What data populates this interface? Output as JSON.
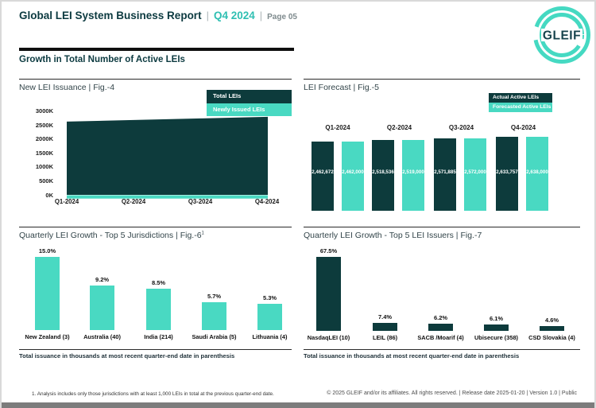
{
  "header": {
    "title": "Global LEI System Business Report",
    "divider": "|",
    "period": "Q4 2024",
    "page_label": "Page 05",
    "logo_text": "GLEIF",
    "section_title": "Growth in Total Number of Active LEIs"
  },
  "colors": {
    "brand_dark": "#0d3b3c",
    "brand_teal": "#49d9c2",
    "accent_teal": "#2fbfb2"
  },
  "chart_data": [
    {
      "id": "fig4",
      "type": "area",
      "title": "New LEI Issuance | Fig.-4",
      "x": [
        "Q1-2024",
        "Q2-2024",
        "Q3-2024",
        "Q4-2024"
      ],
      "y_ticks": [
        "3000K",
        "2500K",
        "2000K",
        "1500K",
        "1000K",
        "500K",
        "0K"
      ],
      "ylim": [
        0,
        3000000
      ],
      "legend_position": "top-right",
      "series": [
        {
          "name": "Total LEIs",
          "color": "#0d3b3c",
          "values": [
            2620000,
            2677000,
            2733000,
            2790000
          ],
          "estimated_from_pixels": true
        },
        {
          "name": "Newly Issued LEIs",
          "color": "#49d9c2",
          "values": [
            40000,
            40000,
            40000,
            40000
          ],
          "estimated_from_pixels": true
        }
      ]
    },
    {
      "id": "fig5",
      "type": "bar",
      "title": "LEI Forecast | Fig.-5",
      "categories": [
        "Q1-2024",
        "Q2-2024",
        "Q3-2024",
        "Q4-2024"
      ],
      "legend_position": "top-right",
      "series": [
        {
          "name": "Actual Active LEIs",
          "color": "#0d3b3c",
          "values": [
            2462672,
            2518536,
            2571885,
            2633757
          ],
          "labels": [
            "2,462,672",
            "2,518,536",
            "2,571,885",
            "2,633,757"
          ]
        },
        {
          "name": "Forecasted Active LEIs",
          "color": "#49d9c2",
          "values": [
            2462000,
            2519000,
            2572000,
            2638000
          ],
          "labels": [
            "2,462,000",
            "2,519,000",
            "2,572,000",
            "2,638,000"
          ]
        }
      ]
    },
    {
      "id": "fig6",
      "type": "bar",
      "title": "Quarterly LEI Growth - Top 5 Jurisdictions | Fig.-6",
      "title_superscript": "1",
      "categories": [
        "New Zealand (3)",
        "Australia (40)",
        "India (214)",
        "Saudi Arabia (5)",
        "Lithuania (4)"
      ],
      "values": [
        15.0,
        9.2,
        8.5,
        5.7,
        5.3
      ],
      "labels": [
        "15.0%",
        "9.2%",
        "8.5%",
        "5.7%",
        "5.3%"
      ],
      "bar_color": "#49d9c2",
      "note": "Total issuance in thousands at most recent quarter-end date in parenthesis"
    },
    {
      "id": "fig7",
      "type": "bar",
      "title": "Quarterly LEI Growth - Top 5 LEI Issuers | Fig.-7",
      "categories": [
        "NasdaqLEI (10)",
        "LEIL (86)",
        "SACB /Moarif (4)",
        "Ubisecure (358)",
        "CSD Slovakia (4)"
      ],
      "values": [
        67.5,
        7.4,
        6.2,
        6.1,
        4.6
      ],
      "labels": [
        "67.5%",
        "7.4%",
        "6.2%",
        "6.1%",
        "4.6%"
      ],
      "bar_color": "#0d3b3c",
      "note": "Total issuance in thousands at most recent quarter-end date in parenthesis"
    }
  ],
  "footer": {
    "footnote": "1. Analysis includes only those jurisdictions with at least 1,000 LEIs in total at the previous quarter-end date.",
    "copyright": "© 2025 GLEIF and/or its affiliates. All rights reserved.  |  Release date 2025-01-20  |  Version 1.0  |  Public"
  }
}
